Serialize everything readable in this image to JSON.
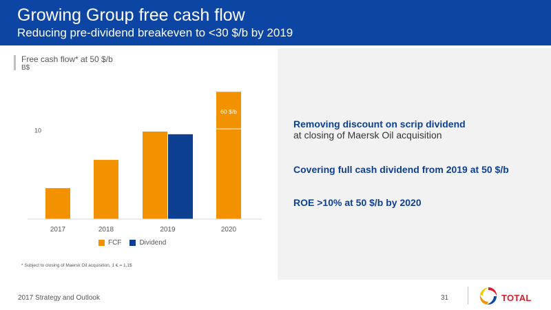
{
  "header": {
    "title": "Growing Group free cash flow",
    "subtitle": "Reducing pre-dividend breakeven to <30 $/b by 2019"
  },
  "chart_data": {
    "type": "bar",
    "title": "Free cash flow* at 50 $/b",
    "unit": "B$",
    "categories": [
      "2017",
      "2018",
      "2019",
      "2020"
    ],
    "ylim": [
      0,
      14.5
    ],
    "y_ticks": [
      10
    ],
    "series": [
      {
        "name": "FCF",
        "color": "#f39200",
        "values": [
          3.5,
          6.7,
          9.9,
          14.4
        ]
      },
      {
        "name": "Dividend",
        "color": "#0d3f91",
        "values": [
          null,
          null,
          9.6,
          null
        ]
      }
    ],
    "annotations": [
      {
        "category": "2020",
        "text": "60 $/b",
        "value": 10.2
      }
    ]
  },
  "legend": {
    "fcf": "FCF",
    "dividend": "Dividend"
  },
  "footnote": "* Subject to closing of Maersk Oil acquisition, 1 € = 1,1$",
  "right": {
    "line1_bold": "Removing discount on scrip dividend",
    "line1_normal": "at closing of Maersk Oil acquisition",
    "line2_bold": "Covering full cash dividend from 2019 at 50 $/b",
    "line3_bold": "ROE >10% at 50 $/b by 2020"
  },
  "footer": {
    "text": "2017 Strategy and Outlook",
    "page": "31"
  },
  "logo": {
    "text": "TOTAL"
  },
  "colors": {
    "header_blue": "#0d45a5",
    "fcf_orange": "#f39200",
    "dividend_blue": "#0d3f91",
    "logo_red": "#d81e2c"
  }
}
